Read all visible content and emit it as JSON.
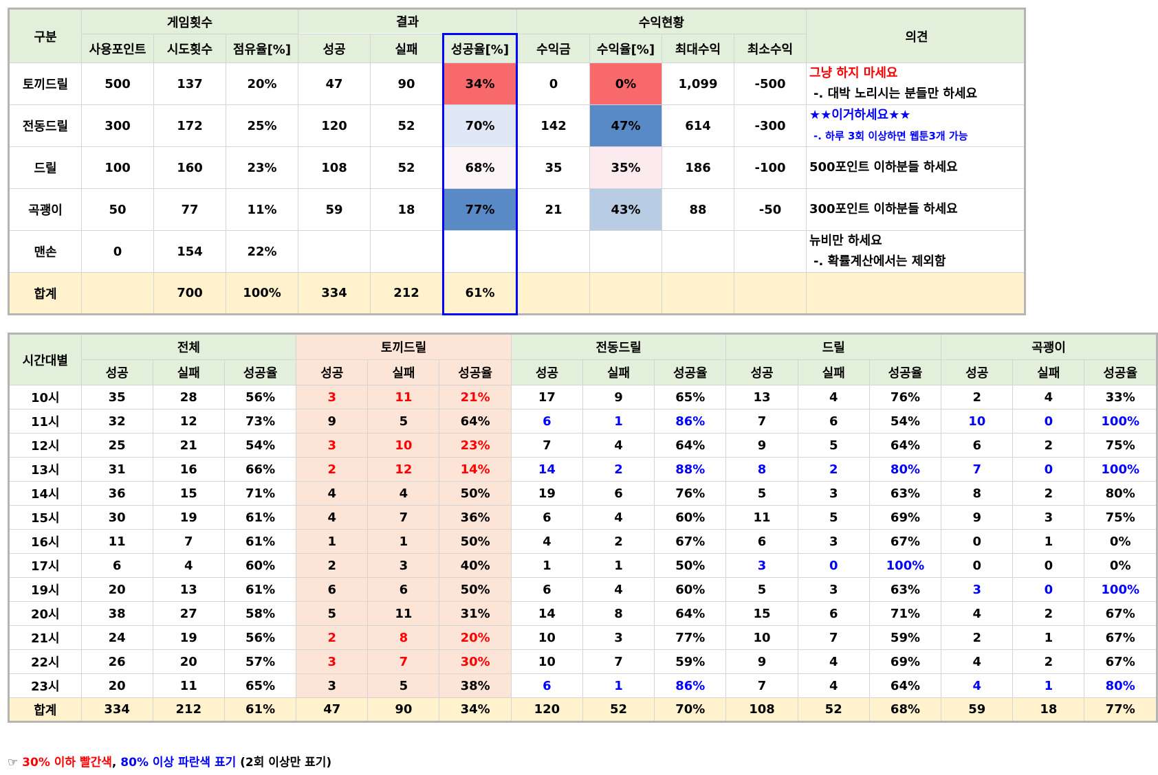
{
  "summary": {
    "header": "구분",
    "groups": [
      {
        "name": "게임횟수",
        "columns": [
          "사용포인트",
          "시도횟수",
          "점유율[%]"
        ]
      },
      {
        "name": "결과",
        "columns": [
          "성공",
          "실패",
          "성공율[%]"
        ]
      },
      {
        "name": "수익현황",
        "columns": [
          "수익금",
          "수익율[%]",
          "최대수익",
          "최소수익"
        ]
      }
    ],
    "opinion_header": "의견",
    "rows": [
      {
        "label": "토끼드릴",
        "cells": [
          "500",
          "137",
          "20%",
          "47",
          "90",
          "34%",
          "0",
          "0%",
          "1,099",
          "-500"
        ],
        "success_rate_fill": "#f8696b",
        "profit_rate_fill": "#f8696b",
        "opinion": [
          {
            "text": "그냥 하지 마세요",
            "color": "#ff0000"
          },
          {
            "text": "-. 대박 노리시는 분들만 하세요",
            "color": "#000000"
          }
        ]
      },
      {
        "label": "전동드릴",
        "cells": [
          "300",
          "172",
          "25%",
          "120",
          "52",
          "70%",
          "142",
          "47%",
          "614",
          "-300"
        ],
        "success_rate_fill": "#e1e8f5",
        "profit_rate_fill": "#5a8ac6",
        "opinion": [
          {
            "text": "★★이거하세요★★",
            "color": "#0000ff"
          },
          {
            "text": "-. 하루 3회 이상하면 웹툰3개 가능",
            "color": "#0000ff"
          }
        ]
      },
      {
        "label": "드릴",
        "cells": [
          "100",
          "160",
          "23%",
          "108",
          "52",
          "68%",
          "35",
          "35%",
          "186",
          "-100"
        ],
        "success_rate_fill": "#fcf5f8",
        "profit_rate_fill": "#fbeaee",
        "opinion": [
          {
            "text": "500포인트 이하분들 하세요",
            "color": "#000000"
          }
        ]
      },
      {
        "label": "곡괭이",
        "cells": [
          "50",
          "77",
          "11%",
          "59",
          "18",
          "77%",
          "21",
          "43%",
          "88",
          "-50"
        ],
        "success_rate_fill": "#5a8ac6",
        "profit_rate_fill": "#b8cce4",
        "opinion": [
          {
            "text": "300포인트 이하분들 하세요",
            "color": "#000000"
          }
        ]
      },
      {
        "label": "맨손",
        "cells": [
          "0",
          "154",
          "22%",
          null,
          null,
          null,
          null,
          null,
          null,
          null
        ],
        "opinion": [
          {
            "text": "뉴비만 하세요",
            "color": "#000000"
          },
          {
            "text": "-. 확률계산에서는 제외함",
            "color": "#000000"
          }
        ]
      },
      {
        "label": "합계",
        "cells": [
          null,
          "700",
          "100%",
          "334",
          "212",
          "61%",
          null,
          null,
          null,
          null
        ],
        "opinion": []
      }
    ]
  },
  "by_hour": {
    "header": "시간대별",
    "groups": [
      {
        "name": "전체",
        "fill": "#ffffff"
      },
      {
        "name": "토끼드릴",
        "fill": "#fce4d6"
      },
      {
        "name": "전동드릴",
        "fill": "#ffffff"
      },
      {
        "name": "드릴",
        "fill": "#ffffff"
      },
      {
        "name": "곡괭이",
        "fill": "#ffffff"
      }
    ],
    "group_header_fills": [
      "#e2efda",
      "#fce4d6",
      "#e2efda",
      "#e2efda",
      "#e2efda"
    ],
    "columns": [
      "성공",
      "실패",
      "성공율"
    ],
    "rows": [
      {
        "label": "10시",
        "cells": [
          [
            "35",
            "28",
            "56%"
          ],
          [
            "3",
            "11",
            "21%"
          ],
          [
            "17",
            "9",
            "65%"
          ],
          [
            "13",
            "4",
            "76%"
          ],
          [
            "2",
            "4",
            "33%"
          ]
        ],
        "colors": [
          "#000000",
          "#ff0000",
          "#000000",
          "#000000",
          "#000000"
        ]
      },
      {
        "label": "11시",
        "cells": [
          [
            "32",
            "12",
            "73%"
          ],
          [
            "9",
            "5",
            "64%"
          ],
          [
            "6",
            "1",
            "86%"
          ],
          [
            "7",
            "6",
            "54%"
          ],
          [
            "10",
            "0",
            "100%"
          ]
        ],
        "colors": [
          "#000000",
          "#000000",
          "#0000ff",
          "#000000",
          "#0000ff"
        ]
      },
      {
        "label": "12시",
        "cells": [
          [
            "25",
            "21",
            "54%"
          ],
          [
            "3",
            "10",
            "23%"
          ],
          [
            "7",
            "4",
            "64%"
          ],
          [
            "9",
            "5",
            "64%"
          ],
          [
            "6",
            "2",
            "75%"
          ]
        ],
        "colors": [
          "#000000",
          "#ff0000",
          "#000000",
          "#000000",
          "#000000"
        ]
      },
      {
        "label": "13시",
        "cells": [
          [
            "31",
            "16",
            "66%"
          ],
          [
            "2",
            "12",
            "14%"
          ],
          [
            "14",
            "2",
            "88%"
          ],
          [
            "8",
            "2",
            "80%"
          ],
          [
            "7",
            "0",
            "100%"
          ]
        ],
        "colors": [
          "#000000",
          "#ff0000",
          "#0000ff",
          "#0000ff",
          "#0000ff"
        ]
      },
      {
        "label": "14시",
        "cells": [
          [
            "36",
            "15",
            "71%"
          ],
          [
            "4",
            "4",
            "50%"
          ],
          [
            "19",
            "6",
            "76%"
          ],
          [
            "5",
            "3",
            "63%"
          ],
          [
            "8",
            "2",
            "80%"
          ]
        ],
        "colors": [
          "#000000",
          "#000000",
          "#000000",
          "#000000",
          "#000000"
        ]
      },
      {
        "label": "15시",
        "cells": [
          [
            "30",
            "19",
            "61%"
          ],
          [
            "4",
            "7",
            "36%"
          ],
          [
            "6",
            "4",
            "60%"
          ],
          [
            "11",
            "5",
            "69%"
          ],
          [
            "9",
            "3",
            "75%"
          ]
        ],
        "colors": [
          "#000000",
          "#000000",
          "#000000",
          "#000000",
          "#000000"
        ]
      },
      {
        "label": "16시",
        "cells": [
          [
            "11",
            "7",
            "61%"
          ],
          [
            "1",
            "1",
            "50%"
          ],
          [
            "4",
            "2",
            "67%"
          ],
          [
            "6",
            "3",
            "67%"
          ],
          [
            "0",
            "1",
            "0%"
          ]
        ],
        "colors": [
          "#000000",
          "#000000",
          "#000000",
          "#000000",
          "#000000"
        ]
      },
      {
        "label": "17시",
        "cells": [
          [
            "6",
            "4",
            "60%"
          ],
          [
            "2",
            "3",
            "40%"
          ],
          [
            "1",
            "1",
            "50%"
          ],
          [
            "3",
            "0",
            "100%"
          ],
          [
            "0",
            "0",
            "0%"
          ]
        ],
        "colors": [
          "#000000",
          "#000000",
          "#000000",
          "#0000ff",
          "#000000"
        ]
      },
      {
        "label": "19시",
        "cells": [
          [
            "20",
            "13",
            "61%"
          ],
          [
            "6",
            "6",
            "50%"
          ],
          [
            "6",
            "4",
            "60%"
          ],
          [
            "5",
            "3",
            "63%"
          ],
          [
            "3",
            "0",
            "100%"
          ]
        ],
        "colors": [
          "#000000",
          "#000000",
          "#000000",
          "#000000",
          "#0000ff"
        ]
      },
      {
        "label": "20시",
        "cells": [
          [
            "38",
            "27",
            "58%"
          ],
          [
            "5",
            "11",
            "31%"
          ],
          [
            "14",
            "8",
            "64%"
          ],
          [
            "15",
            "6",
            "71%"
          ],
          [
            "4",
            "2",
            "67%"
          ]
        ],
        "colors": [
          "#000000",
          "#000000",
          "#000000",
          "#000000",
          "#000000"
        ]
      },
      {
        "label": "21시",
        "cells": [
          [
            "24",
            "19",
            "56%"
          ],
          [
            "2",
            "8",
            "20%"
          ],
          [
            "10",
            "3",
            "77%"
          ],
          [
            "10",
            "7",
            "59%"
          ],
          [
            "2",
            "1",
            "67%"
          ]
        ],
        "colors": [
          "#000000",
          "#ff0000",
          "#000000",
          "#000000",
          "#000000"
        ]
      },
      {
        "label": "22시",
        "cells": [
          [
            "26",
            "20",
            "57%"
          ],
          [
            "3",
            "7",
            "30%"
          ],
          [
            "10",
            "7",
            "59%"
          ],
          [
            "9",
            "4",
            "69%"
          ],
          [
            "4",
            "2",
            "67%"
          ]
        ],
        "colors": [
          "#000000",
          "#ff0000",
          "#000000",
          "#000000",
          "#000000"
        ]
      },
      {
        "label": "23시",
        "cells": [
          [
            "20",
            "11",
            "65%"
          ],
          [
            "3",
            "5",
            "38%"
          ],
          [
            "6",
            "1",
            "86%"
          ],
          [
            "7",
            "4",
            "64%"
          ],
          [
            "4",
            "1",
            "80%"
          ]
        ],
        "colors": [
          "#000000",
          "#000000",
          "#0000ff",
          "#000000",
          "#0000ff"
        ]
      },
      {
        "label": "합계",
        "cells": [
          [
            "334",
            "212",
            "61%"
          ],
          [
            "47",
            "90",
            "34%"
          ],
          [
            "120",
            "52",
            "70%"
          ],
          [
            "108",
            "52",
            "68%"
          ],
          [
            "59",
            "18",
            "77%"
          ]
        ],
        "colors": [
          "#000000",
          "#000000",
          "#000000",
          "#000000",
          "#000000"
        ]
      }
    ]
  },
  "note": [
    {
      "text": "☞ ",
      "color": "#000000"
    },
    {
      "text": "30% 이하 빨간색",
      "color": "#ff0000"
    },
    {
      "text": ", ",
      "color": "#000000"
    },
    {
      "text": "80% 이상 파란색 표기",
      "color": "#0000ff"
    },
    {
      "text": " (2회 이상만 표기)",
      "color": "#000000"
    }
  ]
}
